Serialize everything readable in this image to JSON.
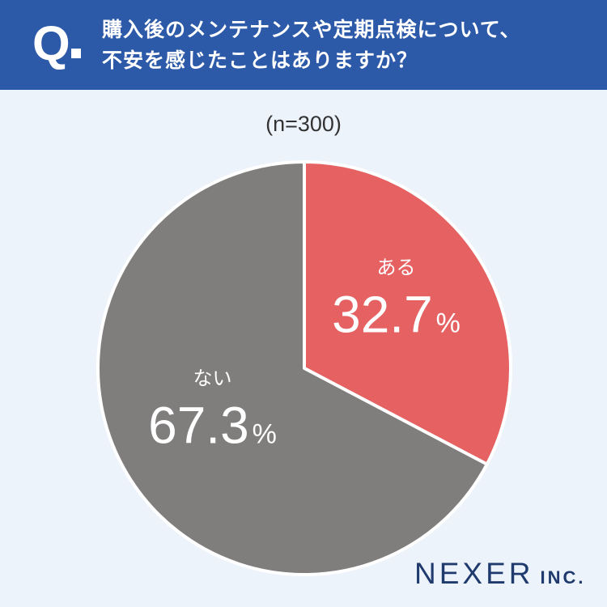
{
  "header": {
    "q_mark": "Q",
    "question_line1": "購入後のメンテナンスや定期点検について、",
    "question_line2": "不安を感じたことはありますか？"
  },
  "sample_label": "(n=300)",
  "chart_data": {
    "type": "pie",
    "slices": [
      {
        "label": "ある",
        "value": 32.7,
        "display": "32.7",
        "color": "#e56162"
      },
      {
        "label": "ない",
        "value": 67.3,
        "display": "67.3",
        "color": "#807d7d"
      }
    ],
    "unit": "%"
  },
  "logo": {
    "main": "NEXER",
    "suffix": "INC."
  }
}
